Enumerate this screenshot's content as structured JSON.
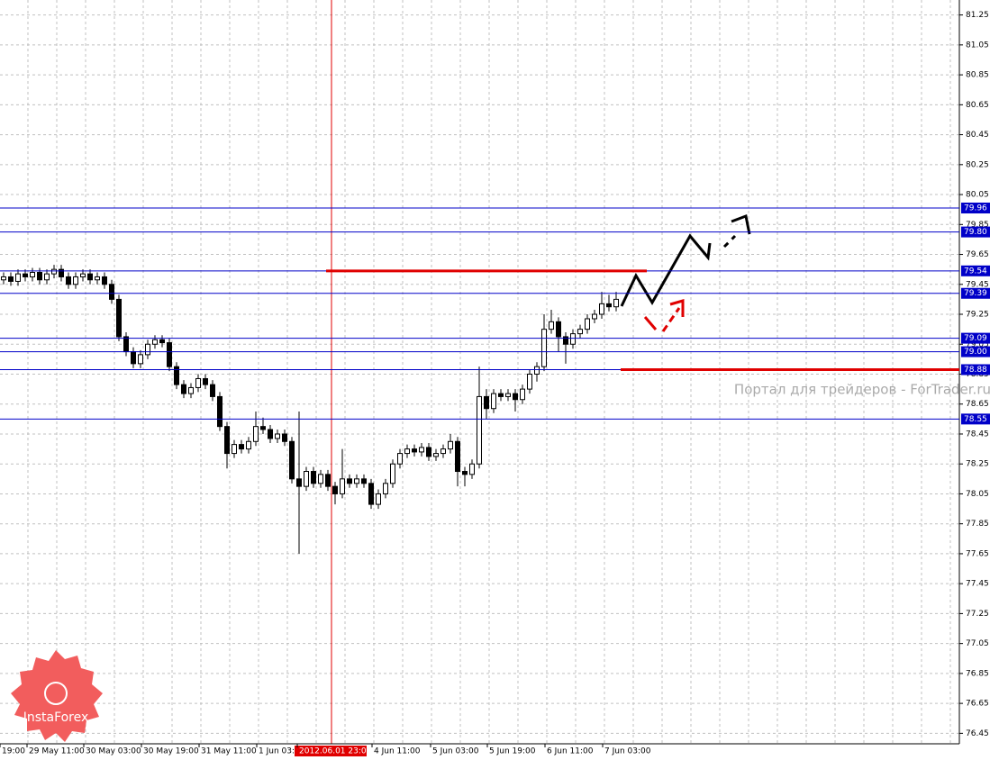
{
  "chart_data": {
    "type": "candlestick",
    "open": [
      79.48,
      79.5,
      79.47,
      79.52,
      79.5,
      79.53,
      79.48,
      79.52,
      79.55,
      79.5,
      79.45,
      79.5,
      79.52,
      79.48,
      79.5,
      79.45,
      79.35,
      79.1,
      79.0,
      78.92,
      78.98,
      79.05,
      79.08,
      79.06,
      78.9,
      78.78,
      78.72,
      78.76,
      78.82,
      78.78,
      78.7,
      78.5,
      78.32,
      78.38,
      78.35,
      78.4,
      78.5,
      78.48,
      78.42,
      78.45,
      78.4,
      78.15,
      78.1,
      78.2,
      78.12,
      78.18,
      78.1,
      78.05,
      78.15,
      78.12,
      78.15,
      78.12,
      77.98,
      78.05,
      78.12,
      78.25,
      78.32,
      78.35,
      78.33,
      78.36,
      78.3,
      78.32,
      78.35,
      78.4,
      78.2,
      78.18,
      78.25,
      78.7,
      78.62,
      78.72,
      78.7,
      78.72,
      78.68,
      78.75,
      78.85,
      78.9,
      79.15,
      79.2,
      79.1,
      79.05,
      79.12,
      79.15,
      79.22,
      79.25,
      79.32,
      79.3
    ],
    "high": [
      79.53,
      79.53,
      79.55,
      79.55,
      79.56,
      79.56,
      79.55,
      79.58,
      79.58,
      79.53,
      79.53,
      79.55,
      79.55,
      79.53,
      79.53,
      79.48,
      79.38,
      79.13,
      79.03,
      79.01,
      79.08,
      79.11,
      79.11,
      79.09,
      78.93,
      78.81,
      78.79,
      78.85,
      78.85,
      78.81,
      78.73,
      78.53,
      78.41,
      78.41,
      78.43,
      78.6,
      78.56,
      78.51,
      78.48,
      78.48,
      78.43,
      78.6,
      78.23,
      78.23,
      78.21,
      78.21,
      78.13,
      78.35,
      78.18,
      78.18,
      78.18,
      78.15,
      78.08,
      78.15,
      78.28,
      78.35,
      78.38,
      78.38,
      78.39,
      78.39,
      78.35,
      78.38,
      78.45,
      78.43,
      78.23,
      78.28,
      78.9,
      78.75,
      78.75,
      78.75,
      78.75,
      78.75,
      78.78,
      78.88,
      78.93,
      79.25,
      79.28,
      79.23,
      79.13,
      79.15,
      79.18,
      79.25,
      79.28,
      79.4,
      79.38,
      79.4
    ],
    "low": [
      79.45,
      79.44,
      79.44,
      79.47,
      79.47,
      79.45,
      79.45,
      79.49,
      79.47,
      79.42,
      79.42,
      79.47,
      79.45,
      79.45,
      79.42,
      79.32,
      79.07,
      78.97,
      78.89,
      78.89,
      78.95,
      79.02,
      79.03,
      78.87,
      78.75,
      78.69,
      78.69,
      78.73,
      78.75,
      78.67,
      78.47,
      78.22,
      78.29,
      78.32,
      78.32,
      78.37,
      78.45,
      78.39,
      78.39,
      78.37,
      78.12,
      77.65,
      78.07,
      78.09,
      78.09,
      78.07,
      77.98,
      78.02,
      78.09,
      78.09,
      78.09,
      77.95,
      77.95,
      78.02,
      78.09,
      78.22,
      78.29,
      78.3,
      78.3,
      78.27,
      78.27,
      78.29,
      78.32,
      78.1,
      78.1,
      78.15,
      78.22,
      78.55,
      78.59,
      78.67,
      78.67,
      78.6,
      78.65,
      78.72,
      78.8,
      78.87,
      79.12,
      79.0,
      78.92,
      79.02,
      79.09,
      79.12,
      79.19,
      79.22,
      79.27,
      79.27
    ],
    "close": [
      79.5,
      79.47,
      79.52,
      79.5,
      79.53,
      79.48,
      79.52,
      79.55,
      79.5,
      79.45,
      79.5,
      79.52,
      79.48,
      79.5,
      79.45,
      79.35,
      79.1,
      79.0,
      78.92,
      78.98,
      79.05,
      79.08,
      79.06,
      78.9,
      78.78,
      78.72,
      78.76,
      78.82,
      78.78,
      78.7,
      78.5,
      78.32,
      78.38,
      78.35,
      78.4,
      78.5,
      78.48,
      78.42,
      78.45,
      78.4,
      78.15,
      78.1,
      78.2,
      78.12,
      78.18,
      78.1,
      78.05,
      78.15,
      78.12,
      78.15,
      78.12,
      77.98,
      78.05,
      78.12,
      78.25,
      78.32,
      78.35,
      78.33,
      78.36,
      78.3,
      78.32,
      78.35,
      78.4,
      78.2,
      78.18,
      78.25,
      78.7,
      78.62,
      78.72,
      78.7,
      78.72,
      78.68,
      78.75,
      78.85,
      78.9,
      79.15,
      79.2,
      79.1,
      79.05,
      79.12,
      79.15,
      79.22,
      79.25,
      79.32,
      79.3,
      79.35
    ],
    "color": "#000000",
    "categories": [
      "19:00",
      "29 May 11:00",
      "30 May 03:00",
      "30 May 19:00",
      "31 May 11:00",
      "1 Jun 03:00",
      "2012.06.01 23:00",
      "4 Jun 11:00",
      "5 Jun 03:00",
      "5 Jun 19:00",
      "6 Jun 11:00",
      "7 Jun 03:00"
    ],
    "ylim": [
      76.38,
      81.35
    ],
    "yticks": [
      81.25,
      81.05,
      80.85,
      80.65,
      80.45,
      80.25,
      80.05,
      79.85,
      79.65,
      79.45,
      79.25,
      79.05,
      78.85,
      78.65,
      78.45,
      78.25,
      78.05,
      77.85,
      77.65,
      77.45,
      77.25,
      77.05,
      76.85,
      76.65,
      76.45
    ],
    "grid": true,
    "levels": [
      {
        "value": 79.96,
        "label": "79.96"
      },
      {
        "value": 79.8,
        "label": "79.80"
      },
      {
        "value": 79.54,
        "label": "79.54"
      },
      {
        "value": 79.39,
        "label": "79.39"
      },
      {
        "value": 79.09,
        "label": "79.09"
      },
      {
        "value": 79.0,
        "label": "79.00"
      },
      {
        "value": 78.88,
        "label": "78.88"
      },
      {
        "value": 78.55,
        "label": "78.55"
      }
    ],
    "level_color": "#0000c8",
    "red_levels": [
      79.54,
      78.88
    ],
    "watermark": "Портал для трейдеров - ForTrader.ru",
    "logo": "InstaForex"
  }
}
